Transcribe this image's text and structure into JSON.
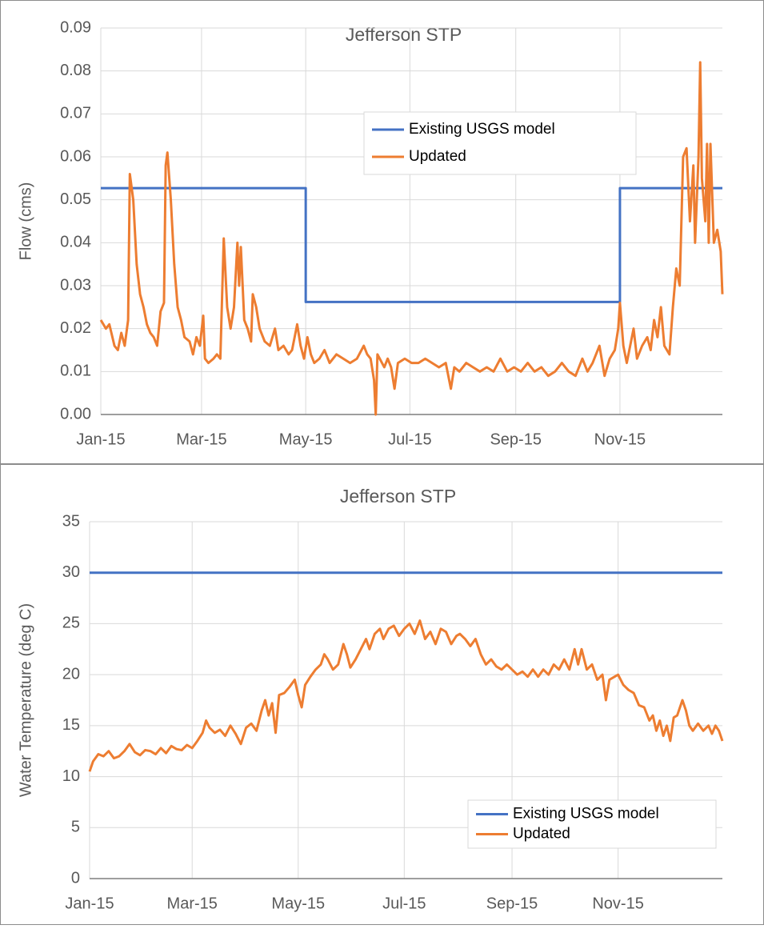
{
  "chart_data": [
    {
      "type": "line",
      "title": "Jefferson STP",
      "y_label": "Flow (cms)",
      "xlim": [
        0,
        364
      ],
      "xticks": [
        {
          "value": 0,
          "label": "Jan-15"
        },
        {
          "value": 59,
          "label": "Mar-15"
        },
        {
          "value": 120,
          "label": "May-15"
        },
        {
          "value": 181,
          "label": "Jul-15"
        },
        {
          "value": 243,
          "label": "Sep-15"
        },
        {
          "value": 304,
          "label": "Nov-15"
        }
      ],
      "ylim": [
        0,
        0.09
      ],
      "yticks": [
        {
          "value": 0,
          "label": "0.00"
        },
        0.01,
        0.02,
        0.03,
        0.04,
        0.05,
        0.06,
        0.07,
        0.08,
        0.09
      ],
      "grid": true,
      "legend": "upper right",
      "series": [
        {
          "name": "Existing USGS model",
          "color": "#4472c4",
          "x": [
            0,
            120,
            120,
            304,
            304,
            364
          ],
          "values": [
            0.0527,
            0.0527,
            0.0262,
            0.0262,
            0.0527,
            0.0527
          ]
        },
        {
          "name": "Updated",
          "color": "#ed7d31",
          "x": [
            0,
            3,
            5,
            8,
            10,
            12,
            14,
            16,
            17,
            19,
            21,
            23,
            25,
            27,
            29,
            31,
            33,
            35,
            37,
            38,
            39,
            41,
            43,
            45,
            47,
            49,
            52,
            54,
            56,
            58,
            60,
            61,
            63,
            66,
            68,
            70,
            72,
            74,
            76,
            78,
            80,
            81,
            82,
            84,
            86,
            88,
            89,
            91,
            93,
            96,
            99,
            102,
            104,
            107,
            110,
            112,
            115,
            117,
            119,
            121,
            123,
            125,
            128,
            131,
            134,
            138,
            142,
            146,
            150,
            154,
            156,
            158,
            160,
            161,
            162,
            166,
            168,
            170,
            172,
            174,
            178,
            182,
            186,
            190,
            194,
            198,
            202,
            205,
            207,
            210,
            214,
            218,
            222,
            226,
            230,
            234,
            238,
            242,
            246,
            250,
            254,
            258,
            262,
            266,
            270,
            274,
            278,
            282,
            285,
            288,
            292,
            295,
            298,
            301,
            303,
            304,
            306,
            308,
            310,
            312,
            314,
            317,
            320,
            322,
            324,
            326,
            328,
            330,
            333,
            335,
            337,
            339,
            341,
            343,
            345,
            347,
            348,
            350,
            351,
            352,
            354,
            355,
            356,
            357,
            359,
            361,
            363,
            364
          ],
          "values": [
            0.022,
            0.02,
            0.021,
            0.016,
            0.015,
            0.019,
            0.016,
            0.022,
            0.056,
            0.05,
            0.035,
            0.028,
            0.025,
            0.021,
            0.019,
            0.018,
            0.016,
            0.024,
            0.026,
            0.058,
            0.061,
            0.05,
            0.035,
            0.025,
            0.022,
            0.018,
            0.017,
            0.014,
            0.018,
            0.016,
            0.023,
            0.013,
            0.012,
            0.013,
            0.014,
            0.013,
            0.041,
            0.025,
            0.02,
            0.025,
            0.04,
            0.03,
            0.039,
            0.022,
            0.02,
            0.017,
            0.028,
            0.025,
            0.02,
            0.017,
            0.016,
            0.02,
            0.015,
            0.016,
            0.014,
            0.015,
            0.021,
            0.016,
            0.013,
            0.018,
            0.014,
            0.012,
            0.013,
            0.015,
            0.012,
            0.014,
            0.013,
            0.012,
            0.013,
            0.016,
            0.014,
            0.013,
            0.008,
            0.0,
            0.014,
            0.011,
            0.013,
            0.011,
            0.006,
            0.012,
            0.013,
            0.012,
            0.012,
            0.013,
            0.012,
            0.011,
            0.012,
            0.006,
            0.011,
            0.01,
            0.012,
            0.011,
            0.01,
            0.011,
            0.01,
            0.013,
            0.01,
            0.011,
            0.01,
            0.012,
            0.01,
            0.011,
            0.009,
            0.01,
            0.012,
            0.01,
            0.009,
            0.013,
            0.01,
            0.012,
            0.016,
            0.009,
            0.013,
            0.015,
            0.02,
            0.026,
            0.016,
            0.012,
            0.016,
            0.02,
            0.013,
            0.016,
            0.018,
            0.015,
            0.022,
            0.018,
            0.025,
            0.016,
            0.014,
            0.025,
            0.034,
            0.03,
            0.06,
            0.062,
            0.045,
            0.058,
            0.04,
            0.06,
            0.082,
            0.055,
            0.045,
            0.063,
            0.04,
            0.063,
            0.04,
            0.043,
            0.038,
            0.028
          ]
        }
      ]
    },
    {
      "type": "line",
      "title": "Jefferson STP",
      "y_label": "Water Temperature  (deg C)",
      "xlim": [
        0,
        364
      ],
      "xticks": [
        {
          "value": 0,
          "label": "Jan-15"
        },
        {
          "value": 59,
          "label": "Mar-15"
        },
        {
          "value": 120,
          "label": "May-15"
        },
        {
          "value": 181,
          "label": "Jul-15"
        },
        {
          "value": 243,
          "label": "Sep-15"
        },
        {
          "value": 304,
          "label": "Nov-15"
        }
      ],
      "ylim": [
        0,
        35
      ],
      "yticks": [
        0,
        5,
        10,
        15,
        20,
        25,
        30,
        35
      ],
      "grid": true,
      "legend": "lower right",
      "series": [
        {
          "name": "Existing USGS model",
          "color": "#4472c4",
          "x": [
            0,
            364
          ],
          "values": [
            30,
            30
          ]
        },
        {
          "name": "Updated",
          "color": "#ed7d31",
          "x": [
            0,
            2,
            5,
            8,
            11,
            14,
            17,
            20,
            23,
            26,
            29,
            32,
            35,
            38,
            41,
            44,
            47,
            50,
            53,
            56,
            59,
            62,
            65,
            67,
            69,
            72,
            75,
            78,
            81,
            84,
            87,
            90,
            93,
            96,
            99,
            101,
            103,
            105,
            107,
            109,
            112,
            115,
            118,
            120,
            122,
            124,
            127,
            130,
            133,
            135,
            137,
            140,
            143,
            146,
            148,
            150,
            153,
            156,
            159,
            161,
            164,
            167,
            169,
            172,
            175,
            178,
            181,
            184,
            187,
            190,
            193,
            196,
            199,
            202,
            205,
            208,
            211,
            213,
            216,
            219,
            222,
            225,
            228,
            231,
            234,
            237,
            240,
            243,
            246,
            249,
            252,
            255,
            258,
            261,
            264,
            267,
            270,
            273,
            276,
            279,
            281,
            283,
            286,
            289,
            292,
            295,
            297,
            299,
            302,
            304,
            307,
            310,
            313,
            316,
            319,
            322,
            324,
            326,
            328,
            330,
            332,
            334,
            336,
            338,
            341,
            343,
            345,
            347,
            350,
            353,
            356,
            358,
            360,
            362,
            364
          ],
          "values": [
            10.5,
            11.5,
            12.2,
            12.0,
            12.5,
            11.8,
            12.0,
            12.5,
            13.2,
            12.4,
            12.1,
            12.6,
            12.5,
            12.2,
            12.8,
            12.3,
            13.0,
            12.7,
            12.6,
            13.1,
            12.8,
            13.5,
            14.3,
            15.5,
            14.8,
            14.3,
            14.6,
            14.0,
            15.0,
            14.2,
            13.2,
            14.8,
            15.2,
            14.5,
            16.5,
            17.5,
            16.0,
            17.2,
            14.3,
            18.0,
            18.2,
            18.8,
            19.5,
            18.0,
            16.8,
            19.0,
            19.8,
            20.5,
            21.0,
            22.0,
            21.5,
            20.5,
            21.0,
            23.0,
            22.0,
            20.7,
            21.5,
            22.5,
            23.5,
            22.5,
            24.0,
            24.5,
            23.5,
            24.5,
            24.8,
            23.8,
            24.5,
            25.0,
            24.0,
            25.3,
            23.5,
            24.2,
            23.0,
            24.5,
            24.2,
            23.0,
            23.8,
            24.0,
            23.5,
            22.8,
            23.5,
            22.0,
            21.0,
            21.5,
            20.8,
            20.5,
            21.0,
            20.5,
            20.0,
            20.3,
            19.8,
            20.5,
            19.8,
            20.5,
            20.0,
            21.0,
            20.5,
            21.5,
            20.5,
            22.5,
            21.0,
            22.5,
            20.5,
            21.0,
            19.5,
            20.0,
            17.5,
            19.5,
            19.8,
            20.0,
            19.0,
            18.5,
            18.2,
            17.0,
            16.8,
            15.5,
            16.0,
            14.5,
            15.5,
            14.0,
            15.0,
            13.5,
            15.8,
            16.0,
            17.5,
            16.5,
            15.0,
            14.5,
            15.2,
            14.5,
            15.0,
            14.2,
            15.0,
            14.5,
            13.5
          ]
        }
      ]
    }
  ]
}
